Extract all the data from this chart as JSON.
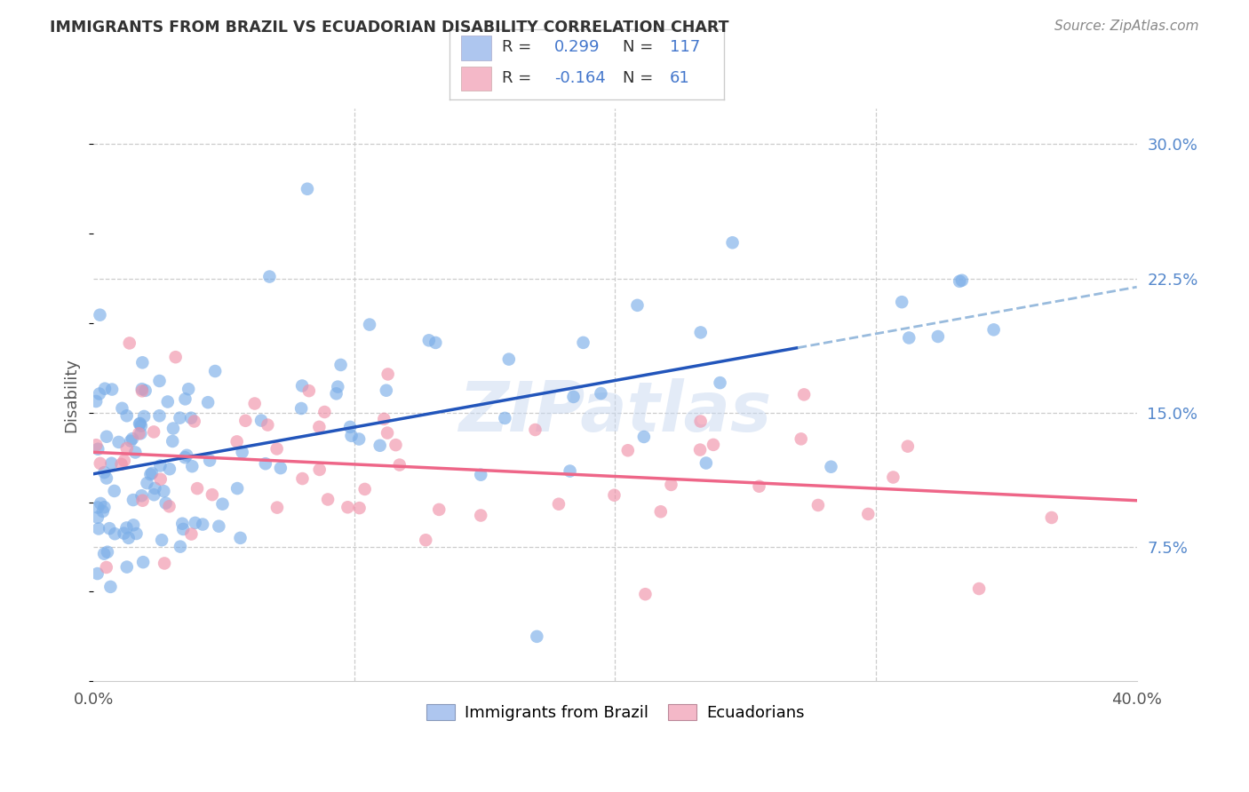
{
  "title": "IMMIGRANTS FROM BRAZIL VS ECUADORIAN DISABILITY CORRELATION CHART",
  "source": "Source: ZipAtlas.com",
  "ylabel": "Disability",
  "yticks_labels": [
    "7.5%",
    "15.0%",
    "22.5%",
    "30.0%"
  ],
  "ytick_vals": [
    0.075,
    0.15,
    0.225,
    0.3
  ],
  "xtick_vals": [
    0.0,
    0.1,
    0.2,
    0.3,
    0.4
  ],
  "xtick_labels": [
    "0.0%",
    "",
    "",
    "",
    "40.0%"
  ],
  "xlim": [
    0.0,
    0.4
  ],
  "ylim": [
    0.0,
    0.32
  ],
  "watermark": "ZIPatlas",
  "brazil_color": "#7baee8",
  "ecuador_color": "#f093aa",
  "brazil_line_color": "#2255bb",
  "ecuador_line_color": "#ee6688",
  "brazil_dash_color": "#99bbdd",
  "seed": 42,
  "brazil_R": 0.299,
  "brazil_N": 117,
  "ecuador_R": -0.164,
  "ecuador_N": 61,
  "legend_brazil_color": "#aec6ef",
  "legend_ecuador_color": "#f4b8c8",
  "brazil_label": "Immigrants from Brazil",
  "ecuador_label": "Ecuadorians"
}
